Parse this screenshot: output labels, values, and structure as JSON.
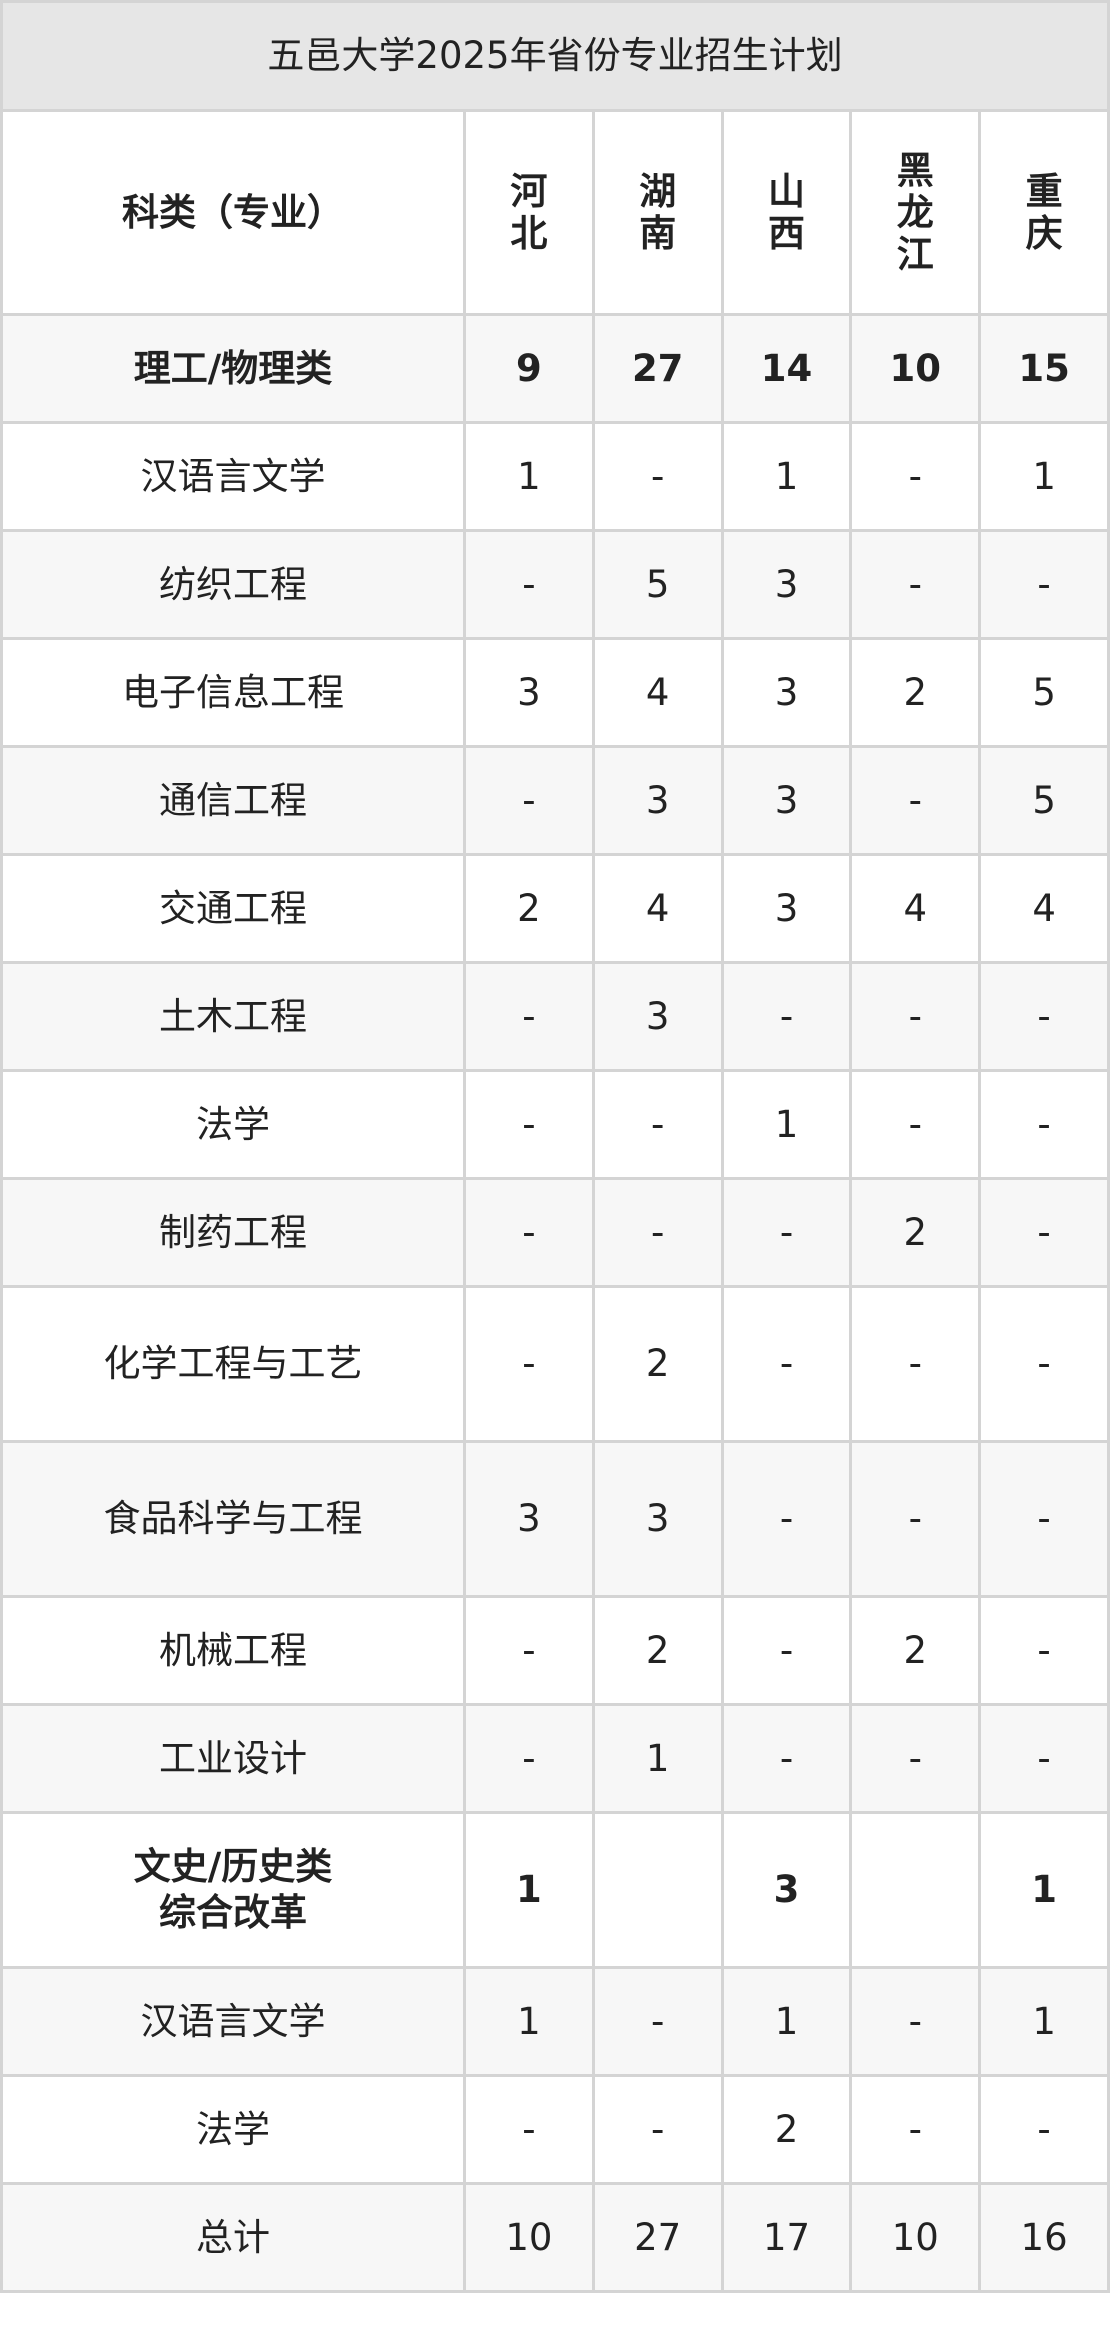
{
  "title": "五邑大学2025年省份专业招生计划",
  "header": {
    "category": "科类（专业）",
    "provinces": [
      "河北",
      "湖南",
      "山西",
      "黑龙江",
      "重庆"
    ]
  },
  "rows": [
    {
      "name": "理工/物理类",
      "values": [
        "9",
        "27",
        "14",
        "10",
        "15"
      ],
      "bold": true
    },
    {
      "name": "汉语言文学",
      "values": [
        "1",
        "-",
        "1",
        "-",
        "1"
      ]
    },
    {
      "name": "纺织工程",
      "values": [
        "-",
        "5",
        "3",
        "-",
        "-"
      ]
    },
    {
      "name": "电子信息工程",
      "values": [
        "3",
        "4",
        "3",
        "2",
        "5"
      ]
    },
    {
      "name": "通信工程",
      "values": [
        "-",
        "3",
        "3",
        "-",
        "5"
      ]
    },
    {
      "name": "交通工程",
      "values": [
        "2",
        "4",
        "3",
        "4",
        "4"
      ]
    },
    {
      "name": "土木工程",
      "values": [
        "-",
        "3",
        "-",
        "-",
        "-"
      ]
    },
    {
      "name": "法学",
      "values": [
        "-",
        "-",
        "1",
        "-",
        "-"
      ]
    },
    {
      "name": "制药工程",
      "values": [
        "-",
        "-",
        "-",
        "2",
        "-"
      ]
    },
    {
      "name": "化学工程与工艺",
      "values": [
        "-",
        "2",
        "-",
        "-",
        "-"
      ]
    },
    {
      "name": "食品科学与工程",
      "values": [
        "3",
        "3",
        "-",
        "-",
        "-"
      ]
    },
    {
      "name": "机械工程",
      "values": [
        "-",
        "2",
        "-",
        "2",
        "-"
      ]
    },
    {
      "name": "工业设计",
      "values": [
        "-",
        "1",
        "-",
        "-",
        "-"
      ]
    },
    {
      "name": "文史/历史类\n综合改革",
      "values": [
        "1",
        "",
        "3",
        "",
        "1"
      ],
      "bold": true
    },
    {
      "name": "汉语言文学",
      "values": [
        "1",
        "-",
        "1",
        "-",
        "1"
      ]
    },
    {
      "name": "法学",
      "values": [
        "-",
        "-",
        "2",
        "-",
        "-"
      ]
    },
    {
      "name": "总计",
      "values": [
        "10",
        "27",
        "17",
        "10",
        "16"
      ]
    }
  ]
}
